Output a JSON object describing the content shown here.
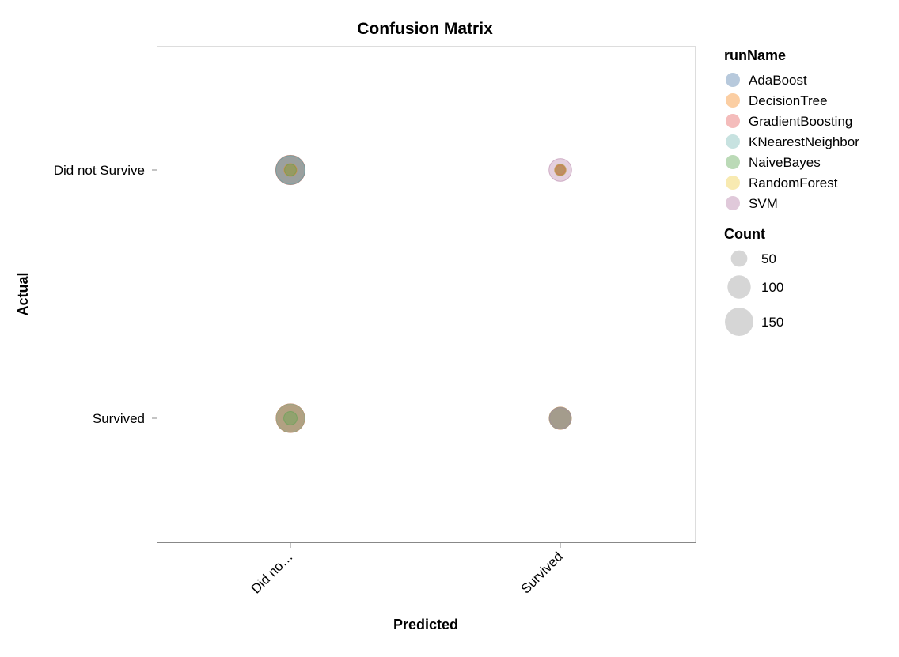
{
  "chart_data": {
    "type": "scatter",
    "title": "Confusion Matrix",
    "xlabel": "Predicted",
    "ylabel": "Actual",
    "x_categories": [
      "Did not Survive",
      "Survived"
    ],
    "x_tick_labels": [
      "Did no…",
      "Survived"
    ],
    "y_categories": [
      "Did not Survive",
      "Survived"
    ],
    "grid": false,
    "color_legend": {
      "title": "runName",
      "placement": "right",
      "entries": [
        "AdaBoost",
        "DecisionTree",
        "GradientBoosting",
        "KNearestNeighbor",
        "NaiveBayes",
        "RandomForest",
        "SVM"
      ],
      "colors": [
        "#4c78a8",
        "#f58518",
        "#e45756",
        "#72b7b2",
        "#54a24b",
        "#eeca3b",
        "#b279a2"
      ]
    },
    "size_legend": {
      "title": "Count",
      "placement": "right",
      "values": [
        50,
        100,
        150
      ]
    },
    "series": [
      {
        "name": "AdaBoost",
        "points": [
          {
            "x": "Did not Survive",
            "y": "Did not Survive",
            "count": 155
          },
          {
            "x": "Survived",
            "y": "Did not Survive",
            "count": 20
          },
          {
            "x": "Did not Survive",
            "y": "Survived",
            "count": 150
          },
          {
            "x": "Survived",
            "y": "Survived",
            "count": 88
          }
        ]
      },
      {
        "name": "DecisionTree",
        "points": [
          {
            "x": "Did not Survive",
            "y": "Did not Survive",
            "count": 30
          },
          {
            "x": "Survived",
            "y": "Did not Survive",
            "count": 25
          },
          {
            "x": "Did not Survive",
            "y": "Survived",
            "count": 148
          },
          {
            "x": "Survived",
            "y": "Survived",
            "count": 90
          }
        ]
      },
      {
        "name": "GradientBoosting",
        "points": [
          {
            "x": "Did not Survive",
            "y": "Did not Survive",
            "count": 157
          },
          {
            "x": "Survived",
            "y": "Did not Survive",
            "count": 18
          },
          {
            "x": "Did not Survive",
            "y": "Survived",
            "count": 152
          },
          {
            "x": "Survived",
            "y": "Survived",
            "count": 90
          }
        ]
      },
      {
        "name": "KNearestNeighbor",
        "points": [
          {
            "x": "Did not Survive",
            "y": "Did not Survive",
            "count": 150
          },
          {
            "x": "Survived",
            "y": "Did not Survive",
            "count": 22
          },
          {
            "x": "Did not Survive",
            "y": "Survived",
            "count": 145
          },
          {
            "x": "Survived",
            "y": "Survived",
            "count": 86
          }
        ]
      },
      {
        "name": "NaiveBayes",
        "points": [
          {
            "x": "Did not Survive",
            "y": "Did not Survive",
            "count": 25
          },
          {
            "x": "Survived",
            "y": "Did not Survive",
            "count": 20
          },
          {
            "x": "Did not Survive",
            "y": "Survived",
            "count": 33
          },
          {
            "x": "Survived",
            "y": "Survived",
            "count": 88
          }
        ]
      },
      {
        "name": "RandomForest",
        "points": [
          {
            "x": "Did not Survive",
            "y": "Did not Survive",
            "count": 158
          },
          {
            "x": "Survived",
            "y": "Did not Survive",
            "count": 20
          },
          {
            "x": "Did not Survive",
            "y": "Survived",
            "count": 150
          },
          {
            "x": "Survived",
            "y": "Survived",
            "count": 87
          }
        ]
      },
      {
        "name": "SVM",
        "points": [
          {
            "x": "Did not Survive",
            "y": "Did not Survive",
            "count": 160
          },
          {
            "x": "Survived",
            "y": "Did not Survive",
            "count": 95
          },
          {
            "x": "Did not Survive",
            "y": "Survived",
            "count": 150
          },
          {
            "x": "Survived",
            "y": "Survived",
            "count": 85
          }
        ]
      }
    ]
  }
}
